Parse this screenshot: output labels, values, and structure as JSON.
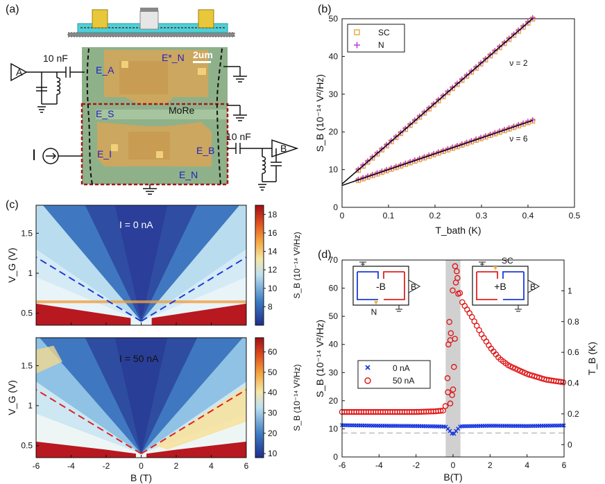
{
  "figure": {
    "panel_labels": {
      "a": "(a)",
      "b": "(b)",
      "c": "(c)",
      "d": "(d)"
    },
    "panel_a": {
      "capacitor_top": "10 nF",
      "capacitor_right": "10 nF",
      "amp_a": "A",
      "amp_b": "B",
      "scale_bar": "2um",
      "material": "MoRe",
      "current_source": "I",
      "contacts": {
        "ea": "E_A",
        "en_star": "E*_N",
        "es": "E_S",
        "ei": "E_I",
        "eb": "E_B",
        "en": "E_N"
      }
    },
    "panel_c_top": {
      "annotation": "I = 0 nA",
      "ylabel": "V_G (V)",
      "cbar_label": "S_B (10^-14 V^2/Hz)"
    },
    "panel_c_bottom": {
      "annotation": "I = 50 nA",
      "ylabel": "V_G (V)",
      "xlabel": "B (T)",
      "cbar_label": "S_B (10^-14 V^2/Hz)"
    },
    "panel_d_insets": {
      "left_field": "-B",
      "right_field": "+B",
      "left_amp": "B",
      "right_amp": "B",
      "left_contact": "N",
      "right_contact": "SC"
    }
  },
  "chart_data": [
    {
      "id": "b",
      "type": "scatter",
      "xlabel": "T_bath (K)",
      "ylabel": "S_B (10^-14 V^2/Hz)",
      "xlim": [
        0,
        0.5
      ],
      "ylim": [
        0,
        50
      ],
      "xticks": [
        0,
        0.1,
        0.2,
        0.3,
        0.4,
        0.5
      ],
      "yticks": [
        0,
        10,
        20,
        30,
        40,
        50
      ],
      "legend": [
        "SC",
        "N"
      ],
      "legend_position": "top-left",
      "annotations": [
        "ν = 2",
        "ν = 6"
      ],
      "colors": {
        "SC": "#e0a030",
        "N": "#c040d8",
        "fit": "#000000"
      },
      "series": [
        {
          "name": "SC",
          "group": "ν = 2",
          "x_range": [
            0.035,
            0.41
          ],
          "fit": {
            "slope": 107,
            "intercept": 6.2
          }
        },
        {
          "name": "N",
          "group": "ν = 2",
          "x_range": [
            0.035,
            0.41
          ],
          "fit": {
            "slope": 107,
            "intercept": 6.2
          }
        },
        {
          "name": "SC",
          "group": "ν = 6",
          "x_range": [
            0.035,
            0.41
          ],
          "fit": {
            "slope": 42,
            "intercept": 5.8
          }
        },
        {
          "name": "N",
          "group": "ν = 6",
          "x_range": [
            0.035,
            0.41
          ],
          "fit": {
            "slope": 42,
            "intercept": 5.8
          }
        }
      ]
    },
    {
      "id": "c_top",
      "type": "heatmap",
      "xlabel": "",
      "ylabel": "V_G (V)",
      "xlim": [
        -6,
        6
      ],
      "ylim": [
        0.35,
        1.85
      ],
      "yticks": [
        0.5,
        1,
        1.5
      ],
      "colorbar": {
        "range": [
          6,
          19
        ],
        "ticks": [
          8,
          10,
          12,
          14,
          16,
          18
        ],
        "label": "S_B (10^-14 V^2/Hz)"
      },
      "dashed_lines": {
        "color": "#1f3bd8",
        "vertex": [
          0,
          0.4
        ],
        "ends": [
          [
            -6,
            1.2
          ],
          [
            6,
            1.2
          ]
        ]
      }
    },
    {
      "id": "c_bottom",
      "type": "heatmap",
      "xlabel": "B (T)",
      "ylabel": "V_G (V)",
      "xlim": [
        -6,
        6
      ],
      "ylim": [
        0.35,
        1.85
      ],
      "xticks": [
        -6,
        -4,
        -2,
        0,
        2,
        4,
        6
      ],
      "yticks": [
        0.5,
        1,
        1.5
      ],
      "colorbar": {
        "range": [
          8,
          67
        ],
        "ticks": [
          10,
          20,
          30,
          40,
          50,
          60
        ],
        "label": "S_B (10^-14 V^2/Hz)"
      },
      "dashed_lines": {
        "color": "#e02020",
        "vertex": [
          0,
          0.4
        ],
        "ends": [
          [
            -6,
            1.2
          ],
          [
            6,
            1.2
          ]
        ]
      }
    },
    {
      "id": "d",
      "type": "scatter",
      "xlabel": "B(T)",
      "ylabel": "S_B (10^-14 V^2/Hz)",
      "ylabel_right": "T_B (K)",
      "xlim": [
        -6,
        6
      ],
      "ylim": [
        0,
        70
      ],
      "ylim_right": [
        -0.08,
        1.2
      ],
      "xticks": [
        -6,
        -4,
        -2,
        0,
        2,
        4,
        6
      ],
      "yticks": [
        0,
        10,
        20,
        30,
        40,
        50,
        60,
        70
      ],
      "yticks_right": [
        0,
        0.2,
        0.4,
        0.6,
        0.8,
        1
      ],
      "legend": [
        "0 nA",
        "50 nA"
      ],
      "shaded_band": [
        -0.4,
        0.4
      ],
      "baseline": 8.5,
      "colors": {
        "0 nA": "#1030e0",
        "50 nA": "#e01010"
      },
      "series": [
        {
          "name": "0 nA",
          "x": [
            -6,
            -4,
            -2,
            -0.4,
            -0.2,
            0,
            0.2,
            0.4,
            2,
            4,
            6
          ],
          "y": [
            11.3,
            11.1,
            11.0,
            10.8,
            9.5,
            7.8,
            9.6,
            10.9,
            11.1,
            11.0,
            11.2
          ]
        },
        {
          "name": "50 nA",
          "x": [
            -6,
            -4,
            -2,
            -1,
            -0.5,
            -0.3,
            -0.2,
            -0.1,
            0,
            0.1,
            0.2,
            0.3,
            0.5,
            1,
            1.5,
            2,
            2.5,
            3,
            4,
            5,
            6
          ],
          "y": [
            16.0,
            16.0,
            16.0,
            16.2,
            16.5,
            20,
            35,
            48,
            62,
            68,
            66,
            60,
            55,
            50,
            44,
            39,
            35,
            32.5,
            29.5,
            27.5,
            26.5
          ]
        }
      ]
    }
  ]
}
